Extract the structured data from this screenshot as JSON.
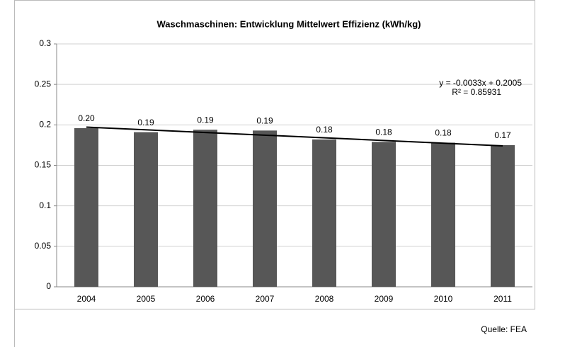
{
  "chart_data": {
    "type": "bar",
    "title": "Waschmaschinen: Entwicklung Mittelwert Effizienz (kWh/kg)",
    "categories": [
      "2004",
      "2005",
      "2006",
      "2007",
      "2008",
      "2009",
      "2010",
      "2011"
    ],
    "values": [
      0.196,
      0.191,
      0.194,
      0.193,
      0.182,
      0.179,
      0.178,
      0.175
    ],
    "value_labels": [
      "0.20",
      "0.19",
      "0.19",
      "0.19",
      "0.18",
      "0.18",
      "0.18",
      "0.17"
    ],
    "color": "#575757",
    "ylim": [
      0,
      0.3
    ],
    "yticks": [
      0,
      0.05,
      0.1,
      0.15,
      0.2,
      0.25,
      0.3
    ],
    "grid": true,
    "trendline": {
      "slope": -0.0033,
      "intercept": 0.2005,
      "equation": "y = -0.0033x + 0.2005",
      "r_squared": "R² = 0.85931"
    },
    "source": "Quelle: FEA"
  }
}
